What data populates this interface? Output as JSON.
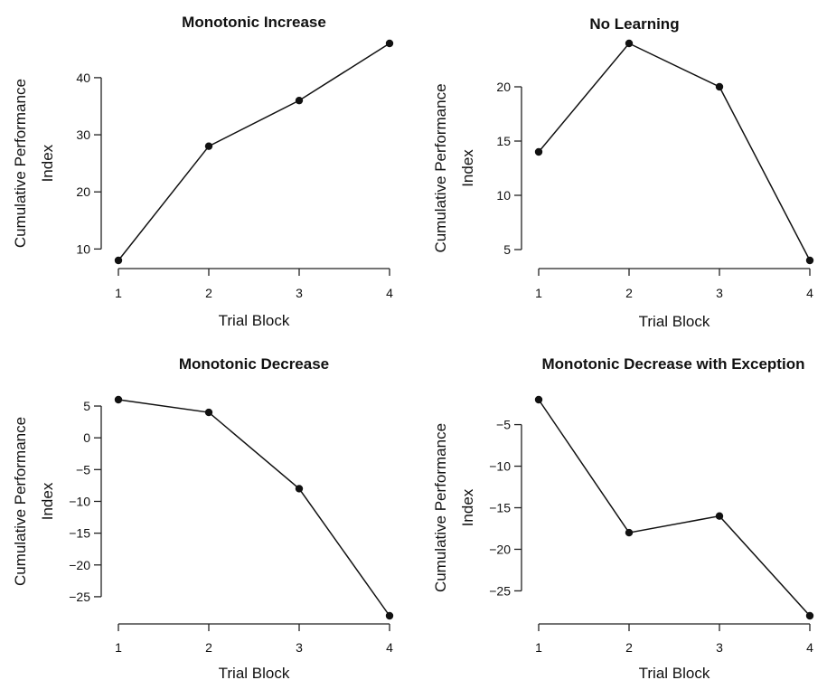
{
  "chart_data": [
    {
      "type": "line",
      "title": "Monotonic Increase",
      "xlabel": "Trial Block",
      "ylabel": [
        "Cumulative Performance",
        "Index"
      ],
      "x": [
        1,
        2,
        3,
        4
      ],
      "y": [
        8,
        28,
        36,
        46
      ],
      "xticks": [
        1,
        2,
        3,
        4
      ],
      "yticks": [
        10,
        20,
        30,
        40
      ],
      "xlim": [
        1,
        4
      ],
      "ylim": [
        8,
        46
      ],
      "grid": false
    },
    {
      "type": "line",
      "title": "No Learning",
      "xlabel": "Trial Block",
      "ylabel": [
        "Cumulative Performance",
        "Index"
      ],
      "x": [
        1,
        2,
        3,
        4
      ],
      "y": [
        14,
        24,
        20,
        4
      ],
      "xticks": [
        1,
        2,
        3,
        4
      ],
      "yticks": [
        5,
        10,
        15,
        20
      ],
      "xlim": [
        1,
        4
      ],
      "ylim": [
        4,
        24
      ],
      "grid": false
    },
    {
      "type": "line",
      "title": "Monotonic Decrease",
      "xlabel": "Trial Block",
      "ylabel": [
        "Cumulative Performance",
        "Index"
      ],
      "x": [
        1,
        2,
        3,
        4
      ],
      "y": [
        6,
        4,
        -8,
        -28
      ],
      "xticks": [
        1,
        2,
        3,
        4
      ],
      "yticks": [
        5,
        0,
        -5,
        -10,
        -15,
        -20,
        -25
      ],
      "xlim": [
        1,
        4
      ],
      "ylim": [
        -28,
        6
      ],
      "grid": false
    },
    {
      "type": "line",
      "title": "Monotonic Decrease with Exception",
      "xlabel": "Trial Block",
      "ylabel": [
        "Cumulative Performance",
        "Index"
      ],
      "x": [
        1,
        2,
        3,
        4
      ],
      "y": [
        -2,
        -18,
        -16,
        -28
      ],
      "xticks": [
        1,
        2,
        3,
        4
      ],
      "yticks": [
        -5,
        -10,
        -15,
        -20,
        -25
      ],
      "xlim": [
        1,
        4
      ],
      "ylim": [
        -28,
        -2
      ],
      "grid": false
    }
  ]
}
